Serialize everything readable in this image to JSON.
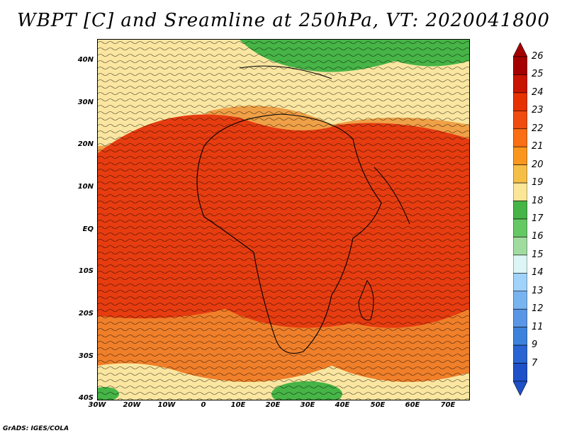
{
  "title": "WBPT [C] and Sreamline at 250hPa, VT: 2020041800",
  "credit": "GrADS: IGES/COLA",
  "lat_labels": [
    "40N",
    "30N",
    "20N",
    "10N",
    "EQ",
    "10S",
    "20S",
    "30S",
    "40S"
  ],
  "lon_labels": [
    "30W",
    "20W",
    "10W",
    "0",
    "10E",
    "20E",
    "30E",
    "40E",
    "50E",
    "60E",
    "70E"
  ],
  "colorbar": {
    "labels": [
      "26",
      "25",
      "24",
      "23",
      "22",
      "21",
      "20",
      "19",
      "18",
      "17",
      "16",
      "15",
      "14",
      "13",
      "12",
      "11",
      "9",
      "7"
    ],
    "colors": [
      "#a50000",
      "#c81400",
      "#e63200",
      "#f04b10",
      "#fa6e14",
      "#fa961e",
      "#f5be46",
      "#fae696",
      "#46b446",
      "#64c864",
      "#a0dca0",
      "#dcf5f5",
      "#a0d2fa",
      "#78b4f0",
      "#5a96e6",
      "#3c82dc",
      "#2864d2",
      "#1e50c8"
    ]
  },
  "map_colors": {
    "hot": "#e63c10",
    "warm": "#f06414",
    "mid": "#f0a046",
    "light": "#fae6a0",
    "green": "#46b446"
  }
}
